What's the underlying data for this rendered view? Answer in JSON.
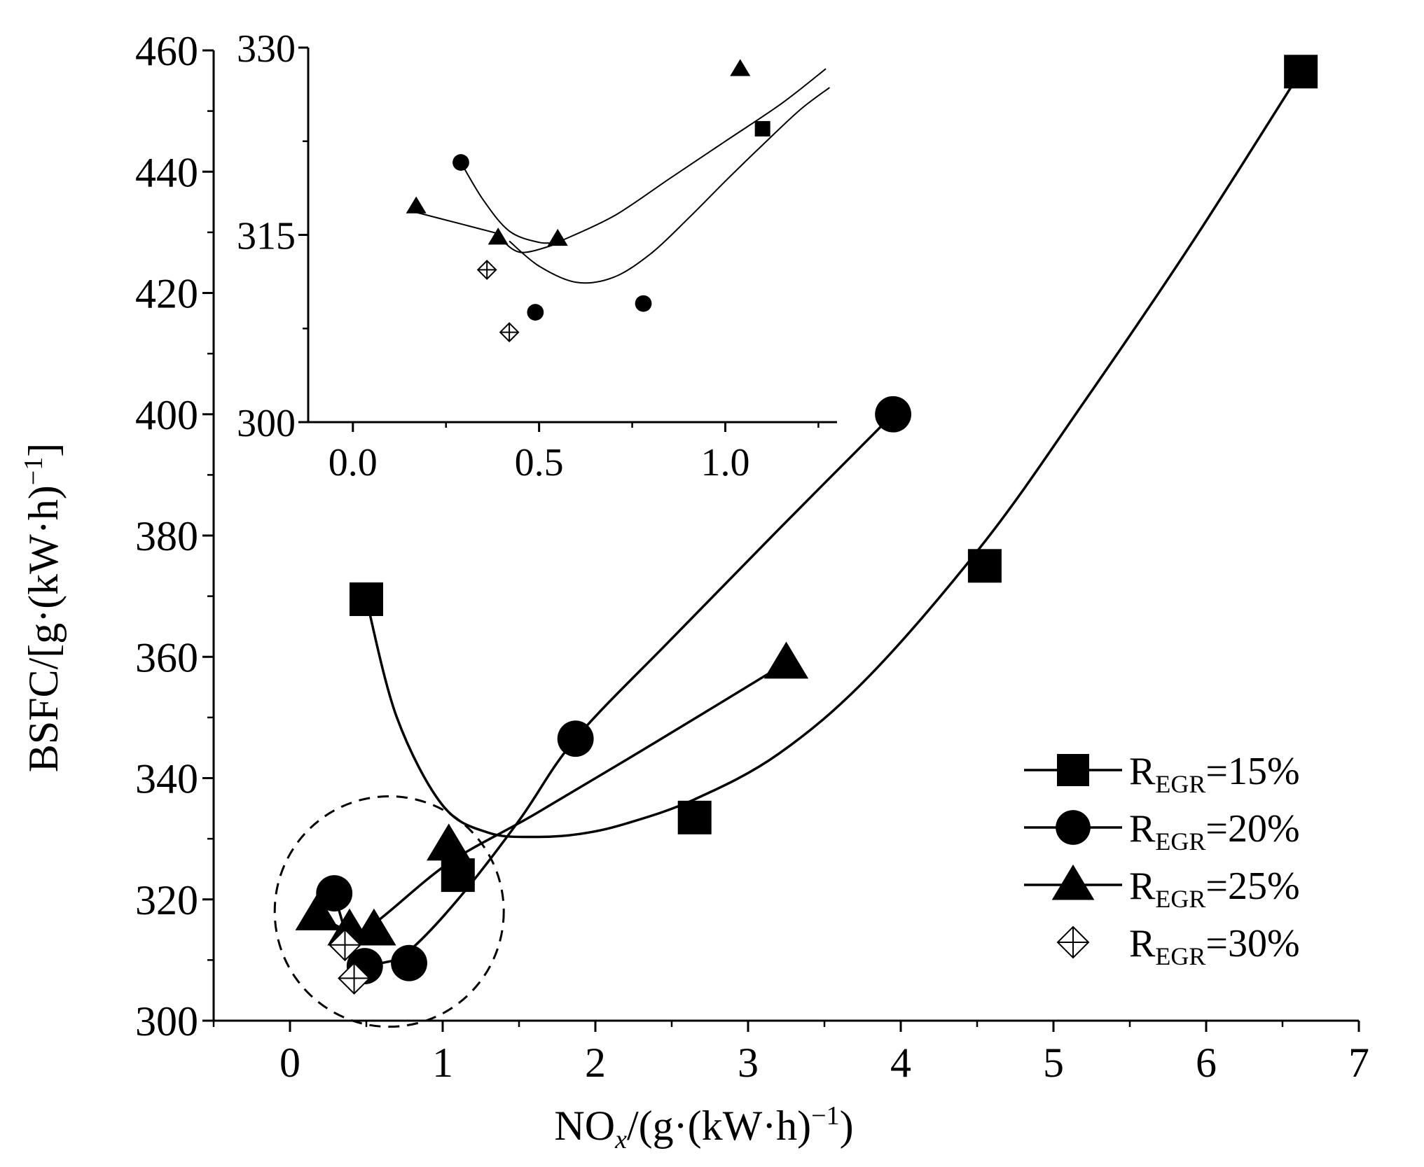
{
  "chart_data": [
    {
      "type": "scatter",
      "xlabel": {
        "main": "NO",
        "sub": "x",
        "tail": "/(g·(kW·h)",
        "sup": "−1",
        "close": ")"
      },
      "ylabel": {
        "main": "BSFC/[g·(kW·h)",
        "sup": "−1",
        "close": "]"
      },
      "xlim": [
        -0.5,
        7
      ],
      "ylim": [
        300,
        460
      ],
      "xticks": [
        0,
        1,
        2,
        3,
        4,
        5,
        6,
        7
      ],
      "xtick_labels": [
        "0",
        "1",
        "2",
        "3",
        "4",
        "5",
        "6",
        "7"
      ],
      "yticks": [
        300,
        320,
        340,
        360,
        380,
        400,
        420,
        440,
        460
      ],
      "ytick_labels": [
        "300",
        "320",
        "340",
        "360",
        "380",
        "400",
        "420",
        "440",
        "460"
      ],
      "legend_position": "lower-right",
      "series": [
        {
          "name": "R_EGR=15%",
          "legend_base": "R",
          "legend_sub": "EGR",
          "legend_tail": "=15%",
          "marker": "square",
          "points": [
            [
              0.5,
              369.5
            ],
            [
              1.1,
              324
            ],
            [
              2.65,
              333.5
            ],
            [
              4.55,
              375
            ],
            [
              6.62,
              456.5
            ]
          ],
          "fit": [
            [
              0.5,
              369.5
            ],
            [
              0.7,
              350
            ],
            [
              1.0,
              335.5
            ],
            [
              1.3,
              331
            ],
            [
              1.6,
              330.3
            ],
            [
              1.9,
              330.8
            ],
            [
              2.2,
              332.5
            ],
            [
              2.65,
              336.5
            ],
            [
              3.2,
              344
            ],
            [
              3.8,
              357
            ],
            [
              4.55,
              379
            ],
            [
              5.2,
              402
            ],
            [
              5.9,
              428
            ],
            [
              6.62,
              456.5
            ]
          ]
        },
        {
          "name": "R_EGR=20%",
          "legend_base": "R",
          "legend_sub": "EGR",
          "legend_tail": "=20%",
          "marker": "circle",
          "points": [
            [
              0.29,
              321
            ],
            [
              0.49,
              309
            ],
            [
              0.78,
              309.5
            ],
            [
              1.87,
              346.5
            ],
            [
              3.95,
              400
            ]
          ],
          "fit": [
            [
              0.29,
              321
            ],
            [
              0.4,
              312
            ],
            [
              0.5,
              309.8
            ],
            [
              0.62,
              309.6
            ],
            [
              0.78,
              311.5
            ],
            [
              1.1,
              320
            ],
            [
              1.5,
              333
            ],
            [
              1.87,
              346.5
            ],
            [
              2.5,
              363
            ],
            [
              3.2,
              381
            ],
            [
              3.95,
              400
            ]
          ]
        },
        {
          "name": "R_EGR=25%",
          "legend_base": "R",
          "legend_sub": "EGR",
          "legend_tail": "=25%",
          "marker": "triangle",
          "points": [
            [
              0.18,
              317.5
            ],
            [
              0.39,
              315
            ],
            [
              0.55,
              315
            ],
            [
              1.04,
              329
            ],
            [
              3.25,
              359
            ]
          ],
          "fit": [
            [
              0.18,
              317.5
            ],
            [
              0.39,
              314.8
            ],
            [
              0.55,
              316
            ],
            [
              1.04,
              326
            ],
            [
              1.6,
              334
            ],
            [
              2.4,
              346
            ],
            [
              3.25,
              359
            ]
          ]
        },
        {
          "name": "R_EGR=30%",
          "legend_base": "R",
          "legend_sub": "EGR",
          "legend_tail": "=30%",
          "marker": "crossed-diamond",
          "points": [
            [
              0.36,
              312.5
            ],
            [
              0.42,
              307
            ]
          ],
          "fit": []
        }
      ],
      "annotations": [
        {
          "type": "dashed-ellipse",
          "center": [
            0.65,
            318
          ],
          "rx": 0.75,
          "ry": 19
        }
      ]
    },
    {
      "type": "scatter",
      "role": "inset",
      "xlim": [
        -0.12,
        1.3
      ],
      "ylim": [
        300,
        330
      ],
      "xticks": [
        0.0,
        0.5,
        1.0
      ],
      "xtick_labels": [
        "0.0",
        "0.5",
        "1.0"
      ],
      "yticks": [
        300,
        315,
        330
      ],
      "ytick_labels": [
        "300",
        "315",
        "330"
      ],
      "series": [
        {
          "name": "R_EGR=15%",
          "marker": "square",
          "points": [
            [
              1.1,
              323.5
            ]
          ],
          "fit": [
            [
              0.42,
              314.5
            ],
            [
              0.5,
              312.5
            ],
            [
              0.6,
              311.2
            ],
            [
              0.7,
              311.6
            ],
            [
              0.8,
              313.5
            ],
            [
              0.9,
              316.3
            ],
            [
              1.0,
              319.3
            ],
            [
              1.1,
              322.2
            ],
            [
              1.2,
              325
            ],
            [
              1.28,
              326.8
            ]
          ]
        },
        {
          "name": "R_EGR=20%",
          "marker": "circle",
          "points": [
            [
              0.29,
              320.8
            ],
            [
              0.49,
              308.8
            ],
            [
              0.78,
              309.5
            ]
          ],
          "fit": [
            [
              0.29,
              320.8
            ],
            [
              0.35,
              317.8
            ],
            [
              0.42,
              315.3
            ],
            [
              0.5,
              314.4
            ],
            [
              0.55,
              314.4
            ]
          ]
        },
        {
          "name": "R_EGR=25%",
          "marker": "triangle",
          "points": [
            [
              0.17,
              317.3
            ],
            [
              0.39,
              314.8
            ],
            [
              0.55,
              314.7
            ],
            [
              1.04,
              328.3
            ]
          ],
          "fit": [
            [
              0.55,
              314.4
            ],
            [
              0.7,
              316.5
            ],
            [
              0.85,
              319.5
            ],
            [
              1.0,
              322.5
            ],
            [
              1.15,
              325.5
            ],
            [
              1.27,
              328.3
            ]
          ]
        },
        {
          "name": "R_EGR=30%",
          "marker": "crossed-diamond",
          "points": [
            [
              0.36,
              312.2
            ],
            [
              0.42,
              307.2
            ]
          ],
          "fit": []
        }
      ],
      "extra_curves": [
        [
          [
            0.17,
            316.8
          ],
          [
            0.3,
            315.8
          ],
          [
            0.39,
            315.1
          ]
        ],
        [
          [
            0.39,
            314.9
          ],
          [
            0.45,
            313.6
          ],
          [
            0.55,
            314.3
          ]
        ]
      ]
    }
  ]
}
